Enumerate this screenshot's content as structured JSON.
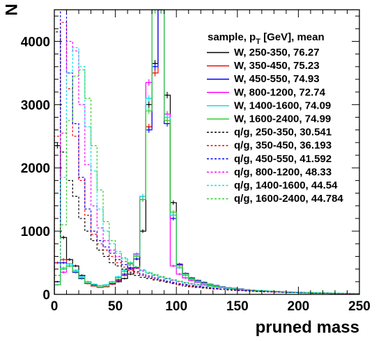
{
  "chart_data": {
    "type": "histogram",
    "xlabel": "pruned mass",
    "ylabel": "N",
    "xlim": [
      0,
      250
    ],
    "ylim": [
      0,
      4500
    ],
    "x_ticks": [
      "0",
      "50",
      "100",
      "150",
      "200",
      "250"
    ],
    "y_ticks": [
      "0",
      "1000",
      "2000",
      "3000",
      "4000"
    ],
    "bin_width": 5,
    "legend": {
      "title_prefix": "sample, p",
      "title_sub": "T",
      "title_suffix": " [GeV], mean",
      "position": "top-right"
    },
    "series": [
      {
        "name": "W, 250-350, 76.27",
        "color": "#000000",
        "dashed": false,
        "values": [
          2350,
          900,
          550,
          450,
          300,
          200,
          150,
          120,
          130,
          160,
          200,
          250,
          320,
          420,
          1000,
          3000,
          3650,
          4500,
          3150,
          1450,
          420,
          300,
          240,
          200,
          170,
          150,
          130,
          110,
          100,
          90,
          80,
          70,
          60,
          55,
          50,
          45,
          40,
          35,
          30,
          30,
          25,
          25,
          20,
          20,
          20,
          15,
          15,
          15,
          10,
          10
        ]
      },
      {
        "name": "W, 350-450, 75.23",
        "color": "#ff0000",
        "dashed": false,
        "values": [
          500,
          550,
          450,
          350,
          250,
          170,
          130,
          110,
          120,
          160,
          220,
          300,
          400,
          560,
          1550,
          2650,
          3500,
          4500,
          2750,
          1250,
          480,
          330,
          260,
          220,
          190,
          160,
          140,
          120,
          105,
          95,
          85,
          75,
          65,
          60,
          55,
          50,
          45,
          40,
          35,
          30,
          30,
          25,
          25,
          20,
          20,
          20,
          15,
          15,
          15,
          10
        ]
      },
      {
        "name": "W, 450-550, 74.93",
        "color": "#0000ff",
        "dashed": false,
        "values": [
          200,
          500,
          480,
          350,
          250,
          180,
          140,
          120,
          130,
          170,
          230,
          320,
          420,
          560,
          1500,
          2600,
          3600,
          4500,
          2700,
          1200,
          470,
          330,
          260,
          220,
          190,
          160,
          140,
          120,
          105,
          95,
          85,
          75,
          65,
          60,
          55,
          50,
          45,
          40,
          35,
          30,
          30,
          25,
          25,
          20,
          20,
          20,
          15,
          15,
          15,
          10
        ]
      },
      {
        "name": "W, 800-1200, 72.74",
        "color": "#ff00ff",
        "dashed": false,
        "values": [
          150,
          350,
          450,
          380,
          280,
          200,
          160,
          140,
          150,
          200,
          280,
          380,
          500,
          640,
          1550,
          3350,
          4500,
          4500,
          2850,
          450,
          320,
          260,
          220,
          190,
          160,
          140,
          120,
          105,
          95,
          85,
          75,
          65,
          60,
          55,
          50,
          45,
          40,
          35,
          30,
          30,
          25,
          25,
          20,
          20,
          20,
          15,
          15,
          15,
          10,
          10
        ]
      },
      {
        "name": "W, 1400-1600, 74.09",
        "color": "#00e5e5",
        "dashed": false,
        "values": [
          150,
          420,
          480,
          380,
          280,
          200,
          160,
          140,
          150,
          200,
          280,
          380,
          500,
          620,
          1550,
          3100,
          4500,
          4500,
          2800,
          1250,
          420,
          300,
          240,
          200,
          170,
          150,
          130,
          110,
          100,
          90,
          80,
          70,
          60,
          55,
          50,
          45,
          40,
          35,
          30,
          30,
          25,
          25,
          20,
          20,
          20,
          15,
          15,
          15,
          10,
          10
        ]
      },
      {
        "name": "W, 1600-2400, 74.99",
        "color": "#33cc33",
        "dashed": false,
        "values": [
          150,
          400,
          450,
          360,
          260,
          180,
          140,
          120,
          130,
          180,
          260,
          360,
          480,
          600,
          1500,
          2900,
          4500,
          4500,
          2750,
          1300,
          450,
          320,
          250,
          210,
          180,
          155,
          135,
          115,
          100,
          90,
          80,
          70,
          62,
          56,
          50,
          45,
          40,
          35,
          30,
          30,
          25,
          25,
          20,
          20,
          20,
          15,
          15,
          15,
          10,
          10
        ]
      },
      {
        "name": "q/g, 250-350, 30.541",
        "color": "#000000",
        "dashed": true,
        "values": [
          4150,
          2250,
          1800,
          1550,
          1200,
          1000,
          850,
          700,
          600,
          500,
          450,
          400,
          350,
          300,
          270,
          250,
          230,
          210,
          190,
          170,
          150,
          130,
          120,
          110,
          100,
          90,
          85,
          80,
          70,
          65,
          60,
          55,
          50,
          45,
          40,
          38,
          35,
          32,
          30,
          28,
          25,
          23,
          21,
          20,
          18,
          16,
          15,
          14,
          13,
          12
        ]
      },
      {
        "name": "q/g, 350-450, 36.193",
        "color": "#ff0000",
        "dashed": true,
        "values": [
          2500,
          4300,
          3250,
          2500,
          1800,
          1250,
          950,
          800,
          700,
          600,
          500,
          430,
          380,
          340,
          300,
          270,
          240,
          220,
          200,
          180,
          160,
          145,
          130,
          120,
          110,
          100,
          90,
          80,
          75,
          70,
          65,
          60,
          55,
          50,
          45,
          40,
          38,
          35,
          32,
          30,
          28,
          25,
          23,
          21,
          20,
          18,
          16,
          15,
          14,
          12
        ]
      },
      {
        "name": "q/g, 450-550, 41.592",
        "color": "#0000ff",
        "dashed": true,
        "values": [
          500,
          4550,
          3500,
          2700,
          1850,
          1350,
          1000,
          850,
          750,
          650,
          550,
          470,
          410,
          360,
          320,
          290,
          260,
          230,
          210,
          190,
          170,
          155,
          140,
          128,
          116,
          105,
          95,
          86,
          78,
          72,
          66,
          60,
          55,
          50,
          46,
          42,
          38,
          35,
          32,
          30,
          27,
          25,
          23,
          21,
          20,
          18,
          16,
          15,
          14,
          12
        ]
      },
      {
        "name": "q/g, 800-1200, 48.33",
        "color": "#ff00ff",
        "dashed": true,
        "values": [
          300,
          2550,
          4000,
          3850,
          3000,
          2050,
          1400,
          1050,
          850,
          700,
          600,
          520,
          460,
          410,
          370,
          330,
          300,
          270,
          245,
          220,
          200,
          180,
          165,
          150,
          138,
          126,
          115,
          105,
          96,
          88,
          80,
          73,
          67,
          61,
          56,
          51,
          47,
          43,
          39,
          36,
          33,
          30,
          28,
          25,
          23,
          21,
          19,
          18,
          16,
          15
        ]
      },
      {
        "name": "q/g, 1400-1600, 44.54",
        "color": "#00e5e5",
        "dashed": true,
        "values": [
          300,
          1850,
          3500,
          3900,
          3600,
          2650,
          1950,
          1350,
          1000,
          800,
          650,
          560,
          490,
          430,
          380,
          340,
          305,
          275,
          250,
          225,
          205,
          185,
          168,
          152,
          138,
          126,
          115,
          105,
          96,
          88,
          80,
          73,
          67,
          61,
          56,
          51,
          47,
          43,
          39,
          36,
          33,
          30,
          28,
          25,
          23,
          21,
          19,
          18,
          16,
          15
        ]
      },
      {
        "name": "q/g, 1600-2400, 44.784",
        "color": "#33cc33",
        "dashed": true,
        "values": [
          300,
          1100,
          2750,
          3450,
          3550,
          3100,
          2350,
          1650,
          1150,
          850,
          680,
          580,
          500,
          440,
          390,
          350,
          315,
          285,
          258,
          233,
          210,
          190,
          172,
          156,
          142,
          130,
          118,
          108,
          98,
          90,
          82,
          75,
          69,
          63,
          58,
          53,
          48,
          44,
          40,
          37,
          34,
          31,
          28,
          26,
          24,
          22,
          20,
          18,
          17,
          15
        ]
      }
    ]
  }
}
